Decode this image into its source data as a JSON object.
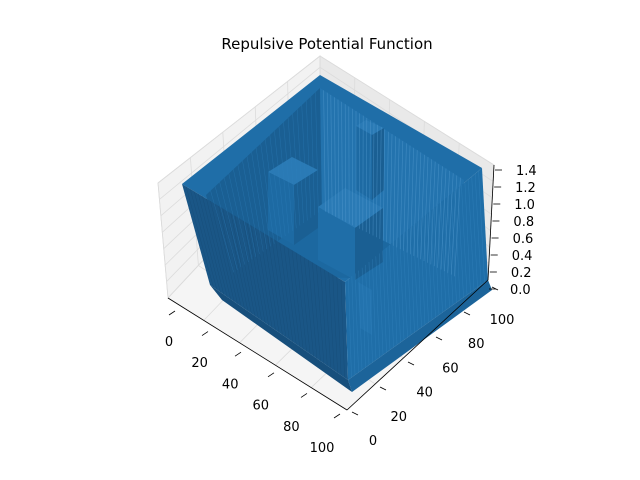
{
  "chart_data": {
    "type": "surface3d",
    "title": "Repulsive Potential Function",
    "xlabel": "",
    "ylabel": "",
    "zlabel": "",
    "x_ticks": [
      "0",
      "20",
      "40",
      "60",
      "80",
      "100"
    ],
    "y_ticks": [
      "0",
      "20",
      "40",
      "60",
      "80",
      "100"
    ],
    "z_ticks": [
      "0.0",
      "0.2",
      "0.4",
      "0.6",
      "0.8",
      "1.0",
      "1.2",
      "1.4"
    ],
    "xlim": [
      0,
      100
    ],
    "ylim": [
      0,
      100
    ],
    "zlim": [
      0,
      1.4
    ],
    "grid": true,
    "surface_color": "#1f77b4",
    "pane_color": "#f2f2f2",
    "features": [
      {
        "name": "boundary wall",
        "value": 1.0
      },
      {
        "name": "obstacle 1",
        "value": 1.0
      },
      {
        "name": "obstacle 2",
        "value": 1.0
      },
      {
        "name": "obstacle 3",
        "value": 1.0
      },
      {
        "name": "open space",
        "value": 0.0
      }
    ]
  }
}
